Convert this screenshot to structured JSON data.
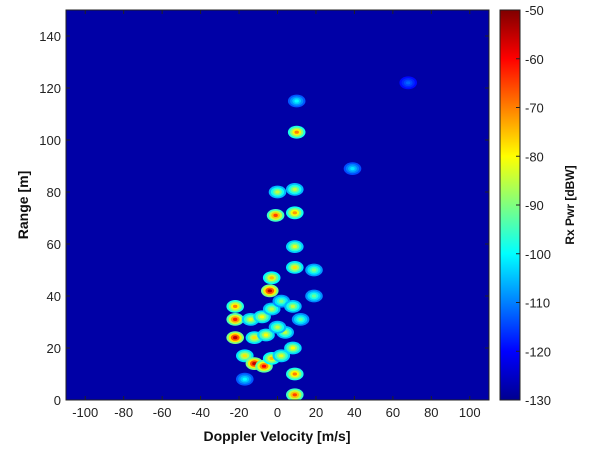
{
  "chart_data": {
    "type": "heatmap",
    "title": "",
    "xlabel": "Doppler Velocity [m/s]",
    "ylabel": "Range [m]",
    "xlim": [
      -110,
      110
    ],
    "ylim": [
      0,
      150
    ],
    "xticks": [
      -100,
      -80,
      -60,
      -40,
      -20,
      0,
      20,
      40,
      60,
      80,
      100
    ],
    "yticks": [
      0,
      20,
      40,
      60,
      80,
      100,
      120,
      140
    ],
    "colorbar": {
      "label": "Rx Pwr [dBW]",
      "range": [
        -130,
        -50
      ],
      "ticks": [
        -50,
        -60,
        -70,
        -80,
        -90,
        -100,
        -110,
        -120,
        -130
      ],
      "colormap": "jet"
    },
    "background_level_dBW": -127,
    "hotspots": [
      {
        "x": -22,
        "y": 24,
        "level": -55
      },
      {
        "x": -22,
        "y": 31,
        "level": -62
      },
      {
        "x": -22,
        "y": 36,
        "level": -70
      },
      {
        "x": -12,
        "y": 24,
        "level": -78
      },
      {
        "x": -6,
        "y": 25,
        "level": -80
      },
      {
        "x": -14,
        "y": 31,
        "level": -82
      },
      {
        "x": -8,
        "y": 32,
        "level": -80
      },
      {
        "x": -3,
        "y": 35,
        "level": -85
      },
      {
        "x": 4,
        "y": 26,
        "level": -85
      },
      {
        "x": -17,
        "y": 17,
        "level": -78
      },
      {
        "x": -12,
        "y": 14,
        "level": -55
      },
      {
        "x": -7,
        "y": 13,
        "level": -60
      },
      {
        "x": -3,
        "y": 16,
        "level": -75
      },
      {
        "x": 2,
        "y": 17,
        "level": -82
      },
      {
        "x": -4,
        "y": 42,
        "level": -55
      },
      {
        "x": -3,
        "y": 47,
        "level": -75
      },
      {
        "x": 0,
        "y": 28,
        "level": -85
      },
      {
        "x": 2,
        "y": 38,
        "level": -90
      },
      {
        "x": -1,
        "y": 71,
        "level": -65
      },
      {
        "x": 0,
        "y": 80,
        "level": -85
      },
      {
        "x": 9,
        "y": 10,
        "level": -70
      },
      {
        "x": 9,
        "y": 2,
        "level": -65
      },
      {
        "x": 8,
        "y": 20,
        "level": -80
      },
      {
        "x": 8,
        "y": 36,
        "level": -85
      },
      {
        "x": 9,
        "y": 51,
        "level": -78
      },
      {
        "x": 9,
        "y": 59,
        "level": -82
      },
      {
        "x": 9,
        "y": 72,
        "level": -72
      },
      {
        "x": 9,
        "y": 81,
        "level": -85
      },
      {
        "x": 10,
        "y": 103,
        "level": -70
      },
      {
        "x": 10,
        "y": 115,
        "level": -100
      },
      {
        "x": 19,
        "y": 50,
        "level": -90
      },
      {
        "x": 19,
        "y": 40,
        "level": -92
      },
      {
        "x": 39,
        "y": 89,
        "level": -102
      },
      {
        "x": 12,
        "y": 31,
        "level": -92
      },
      {
        "x": -17,
        "y": 8,
        "level": -100
      },
      {
        "x": 68,
        "y": 122,
        "level": -112
      }
    ]
  }
}
